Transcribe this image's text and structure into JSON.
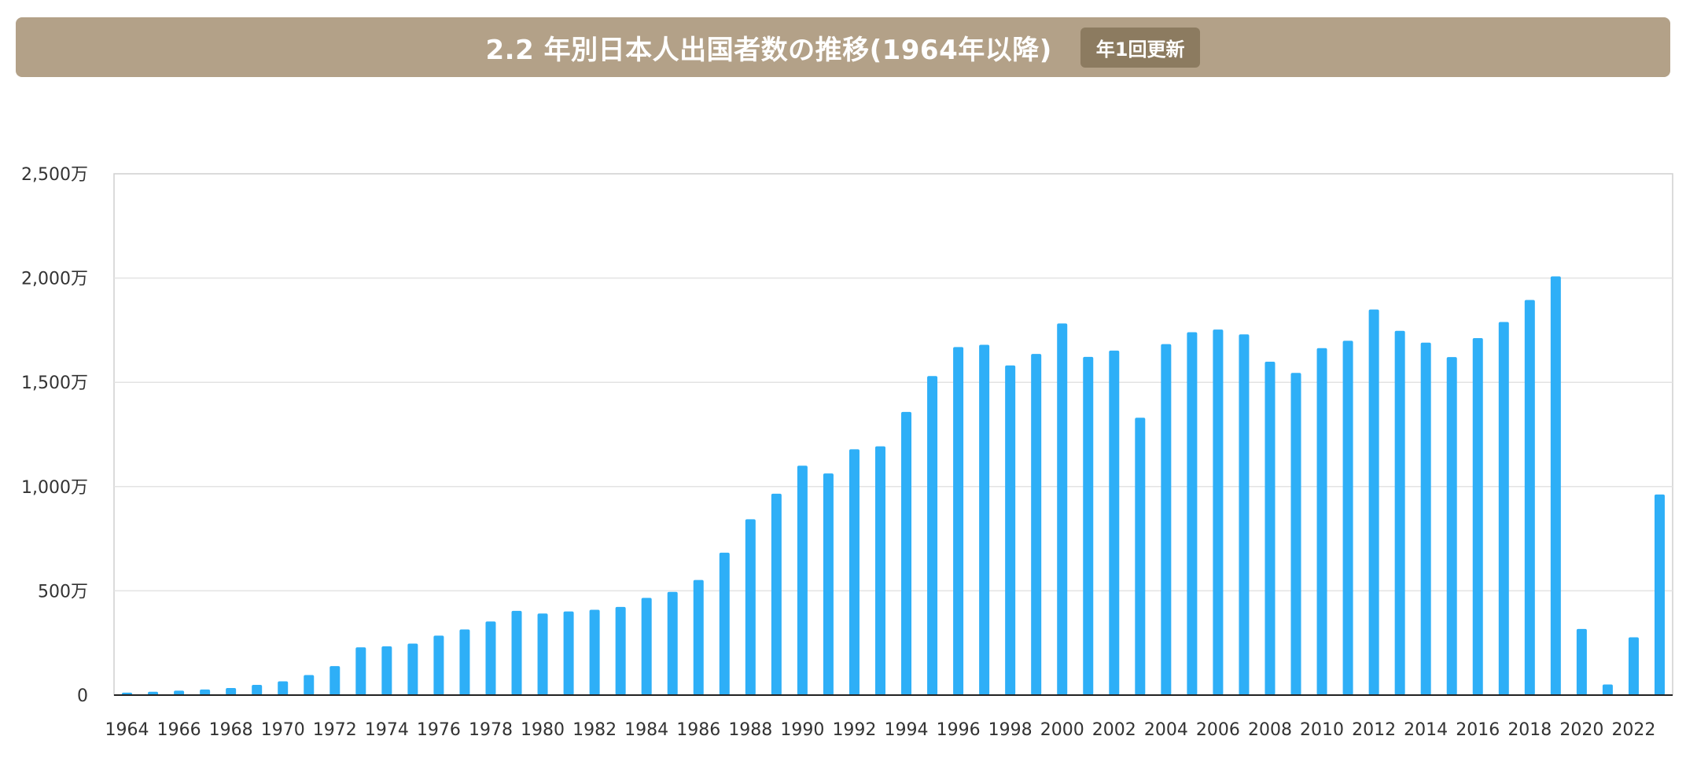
{
  "header": {
    "title": "2.2 年別日本人出国者数の推移(1964年以降)",
    "badge": "年1回更新"
  },
  "colors": {
    "header_bg": "#b3a188",
    "badge_bg": "#8c7b60",
    "bar": "#2eaff7",
    "grid": "#e3e3e3",
    "axis": "#333333"
  },
  "chart_data": {
    "type": "bar",
    "unit": "万",
    "ylim": [
      0,
      2500
    ],
    "yticks": [
      0,
      500,
      1000,
      1500,
      2000,
      2500
    ],
    "ytick_labels": [
      "0",
      "500万",
      "1,000万",
      "1,500万",
      "2,000万",
      "2,500万"
    ],
    "grid": true,
    "categories": [
      "1964",
      "1965",
      "1966",
      "1967",
      "1968",
      "1969",
      "1970",
      "1971",
      "1972",
      "1973",
      "1974",
      "1975",
      "1976",
      "1977",
      "1978",
      "1979",
      "1980",
      "1981",
      "1982",
      "1983",
      "1984",
      "1985",
      "1986",
      "1987",
      "1988",
      "1989",
      "1990",
      "1991",
      "1992",
      "1993",
      "1994",
      "1995",
      "1996",
      "1997",
      "1998",
      "1999",
      "2000",
      "2001",
      "2002",
      "2003",
      "2004",
      "2005",
      "2006",
      "2007",
      "2008",
      "2009",
      "2010",
      "2011",
      "2012",
      "2013",
      "2014",
      "2015",
      "2016",
      "2017",
      "2018",
      "2019",
      "2020",
      "2021",
      "2022",
      "2023"
    ],
    "xtick_labels": [
      "1964",
      "1966",
      "1968",
      "1970",
      "1972",
      "1974",
      "1976",
      "1978",
      "1980",
      "1982",
      "1984",
      "1986",
      "1988",
      "1990",
      "1992",
      "1994",
      "1996",
      "1998",
      "2000",
      "2002",
      "2004",
      "2006",
      "2008",
      "2010",
      "2012",
      "2014",
      "2016",
      "2018",
      "2020",
      "2022"
    ],
    "values": [
      12,
      16,
      21,
      27,
      34,
      49,
      66,
      96,
      139,
      229,
      234,
      247,
      285,
      315,
      353,
      404,
      391,
      401,
      409,
      423,
      466,
      495,
      552,
      683,
      843,
      966,
      1100,
      1063,
      1179,
      1193,
      1358,
      1530,
      1669,
      1680,
      1581,
      1636,
      1782,
      1622,
      1652,
      1330,
      1683,
      1740,
      1753,
      1730,
      1599,
      1545,
      1664,
      1699,
      1849,
      1747,
      1690,
      1621,
      1712,
      1789,
      1895,
      2008,
      317,
      51,
      277,
      962
    ]
  }
}
